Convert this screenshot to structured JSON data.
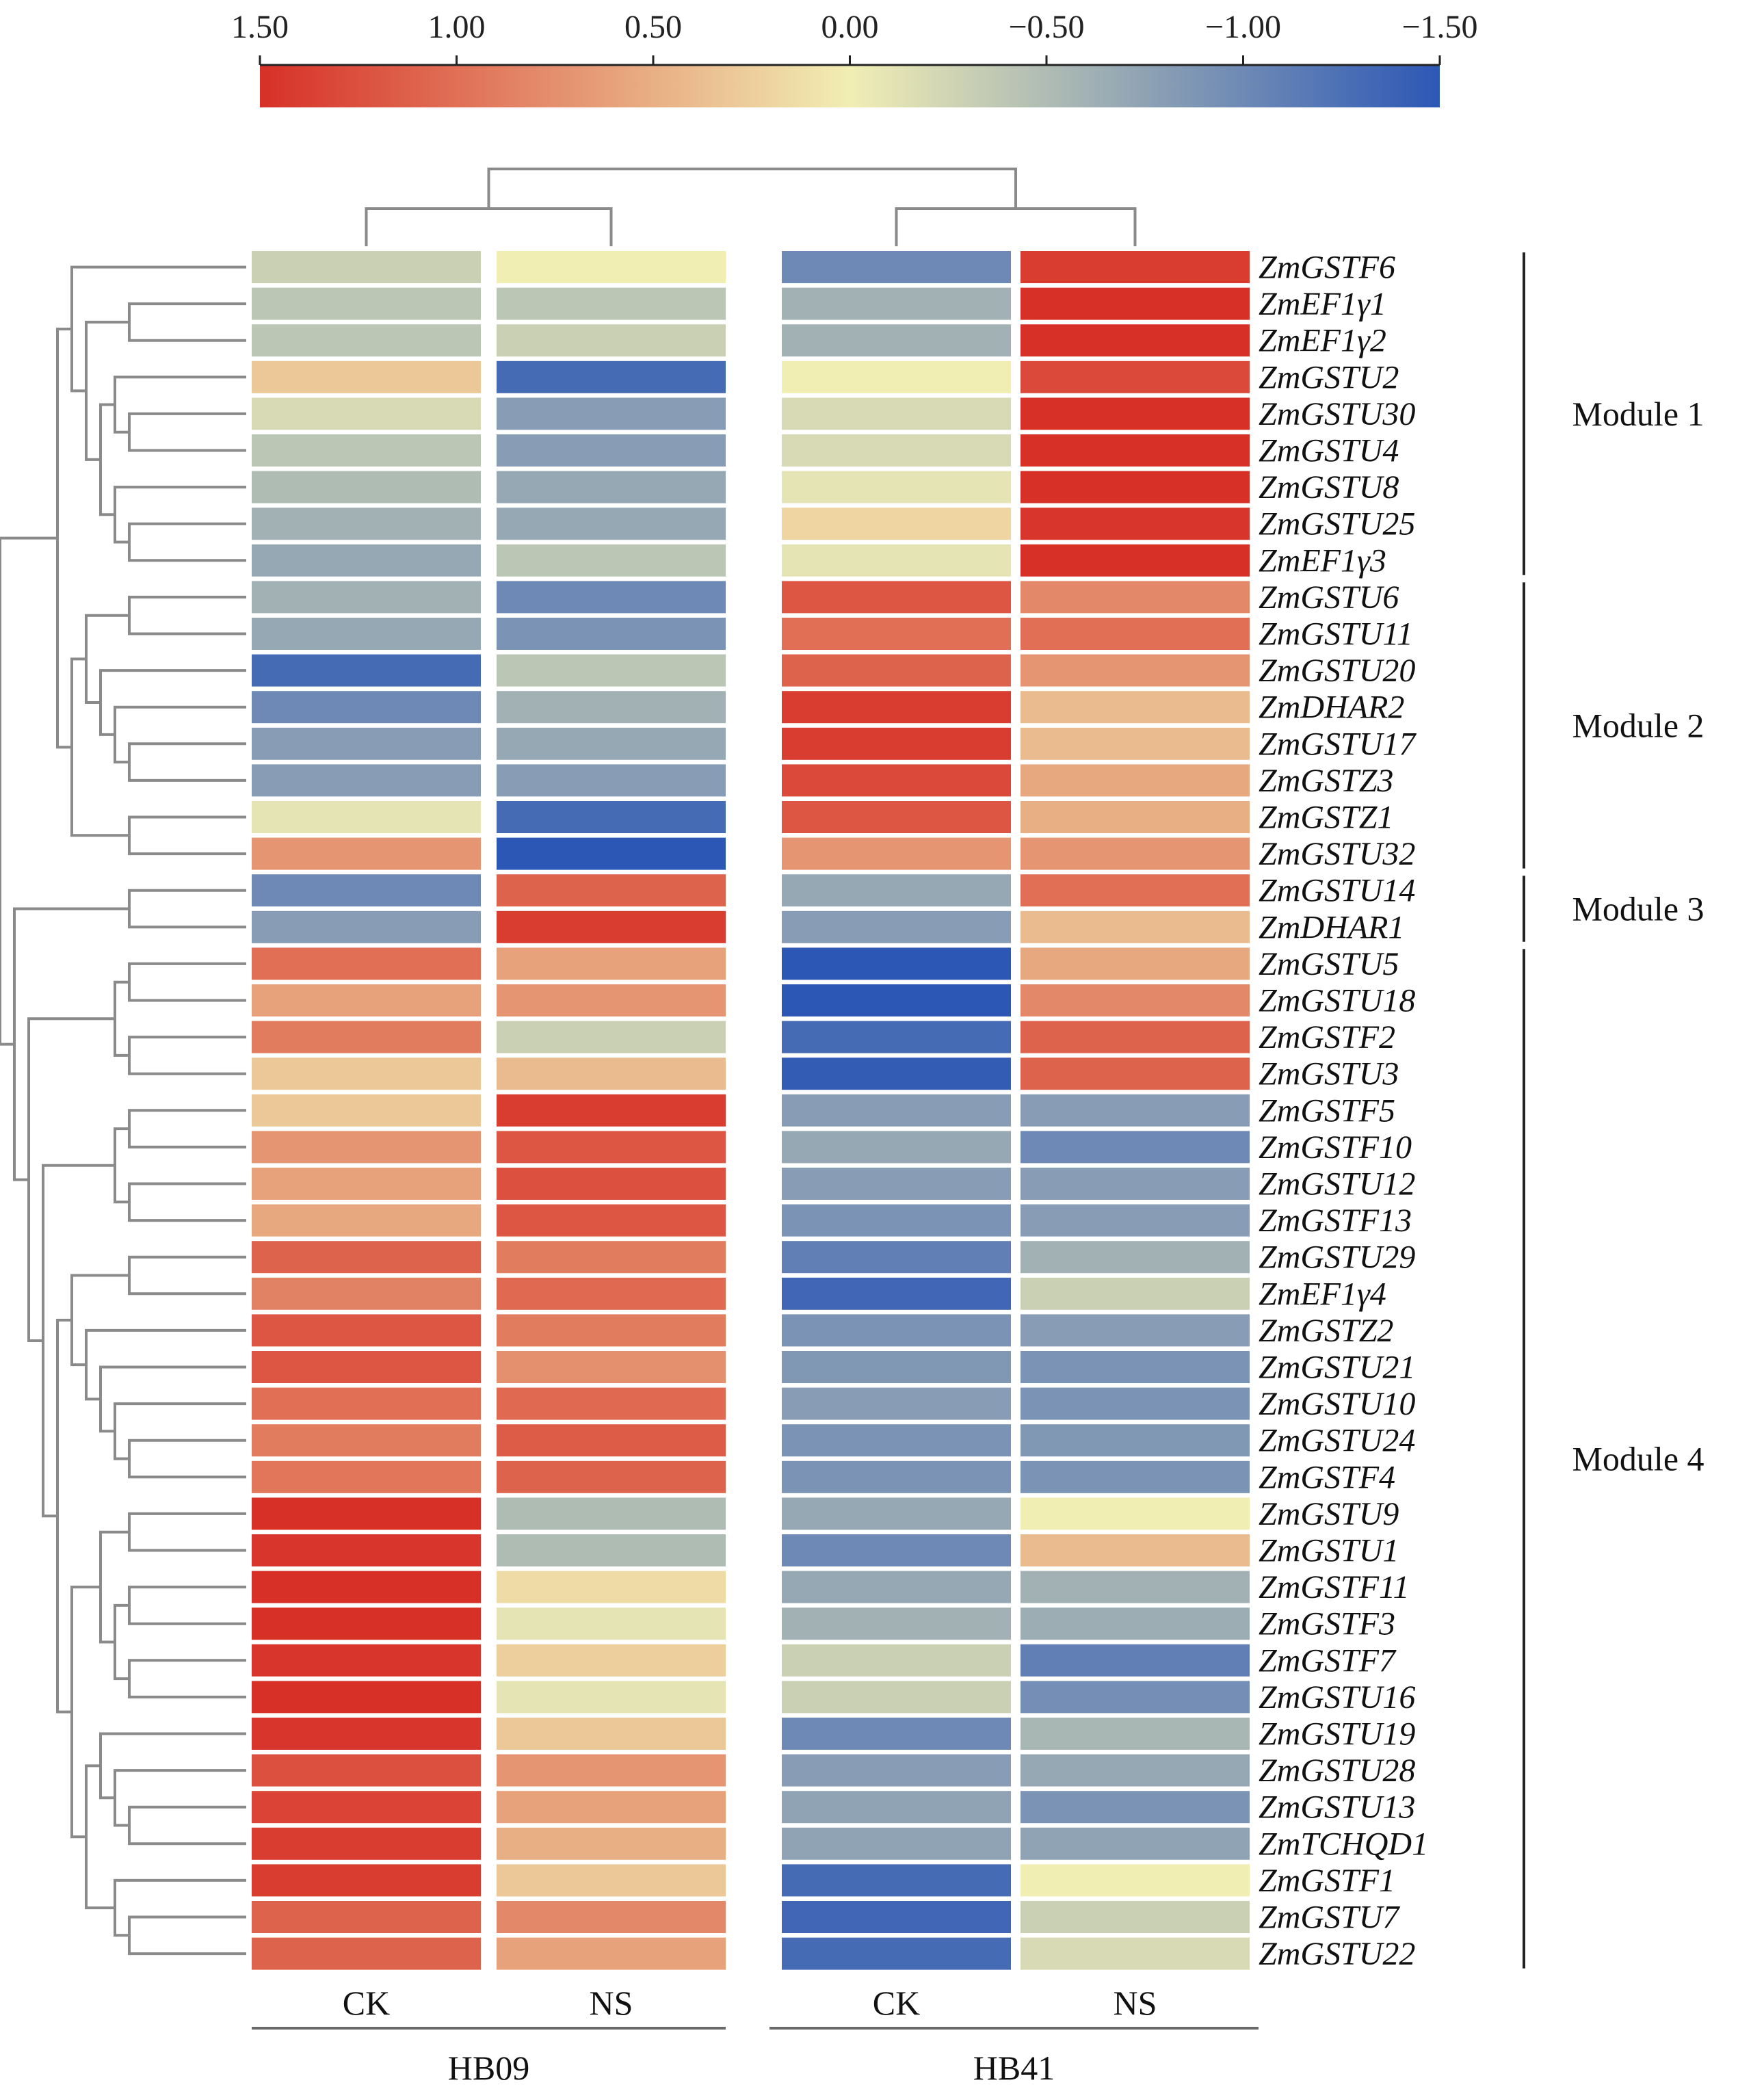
{
  "chart_data": {
    "type": "heatmap",
    "title": "",
    "colorbar": {
      "ticks": [
        "1.50",
        "1.00",
        "0.50",
        "0.00",
        "−0.50",
        "−1.00",
        "−1.50"
      ],
      "range": [
        1.5,
        -1.5
      ],
      "colors": {
        "high": "#d73027",
        "mid": "#f1eeb4",
        "low": "#2c57b5"
      }
    },
    "groups": [
      {
        "name": "HB09",
        "columns": [
          "CK",
          "NS"
        ]
      },
      {
        "name": "HB41",
        "columns": [
          "CK",
          "NS"
        ]
      }
    ],
    "columns": [
      "HB09 CK",
      "HB09 NS",
      "HB41 CK",
      "HB41 NS"
    ],
    "genes": [
      "ZmGSTF6",
      "ZmEF1γ1",
      "ZmEF1γ2",
      "ZmGSTU2",
      "ZmGSTU30",
      "ZmGSTU4",
      "ZmGSTU8",
      "ZmGSTU25",
      "ZmEF1γ3",
      "ZmGSTU6",
      "ZmGSTU11",
      "ZmGSTU20",
      "ZmDHAR2",
      "ZmGSTU17",
      "ZmGSTZ3",
      "ZmGSTZ1",
      "ZmGSTU32",
      "ZmGSTU14",
      "ZmDHAR1",
      "ZmGSTU5",
      "ZmGSTU18",
      "ZmGSTF2",
      "ZmGSTU3",
      "ZmGSTF5",
      "ZmGSTF10",
      "ZmGSTU12",
      "ZmGSTF13",
      "ZmGSTU29",
      "ZmEF1γ4",
      "ZmGSTZ2",
      "ZmGSTU21",
      "ZmGSTU10",
      "ZmGSTU24",
      "ZmGSTF4",
      "ZmGSTU9",
      "ZmGSTU1",
      "ZmGSTF11",
      "ZmGSTF3",
      "ZmGSTF7",
      "ZmGSTU16",
      "ZmGSTU19",
      "ZmGSTU28",
      "ZmGSTU13",
      "ZmTCHQD1",
      "ZmGSTF1",
      "ZmGSTU7",
      "ZmGSTU22"
    ],
    "values": [
      [
        -0.3,
        0.0,
        -1.0,
        1.4
      ],
      [
        -0.4,
        -0.4,
        -0.6,
        1.5
      ],
      [
        -0.4,
        -0.3,
        -0.6,
        1.5
      ],
      [
        0.3,
        -1.3,
        0.0,
        1.3
      ],
      [
        -0.2,
        -0.8,
        -0.2,
        1.5
      ],
      [
        -0.4,
        -0.8,
        -0.2,
        1.5
      ],
      [
        -0.5,
        -0.7,
        -0.1,
        1.5
      ],
      [
        -0.6,
        -0.7,
        0.2,
        1.45
      ],
      [
        -0.7,
        -0.4,
        -0.1,
        1.5
      ],
      [
        -0.6,
        -1.0,
        1.2,
        0.8
      ],
      [
        -0.7,
        -0.9,
        1.0,
        1.0
      ],
      [
        -1.3,
        -0.4,
        1.1,
        0.7
      ],
      [
        -1.0,
        -0.6,
        1.4,
        0.4
      ],
      [
        -0.8,
        -0.7,
        1.4,
        0.4
      ],
      [
        -0.8,
        -0.8,
        1.3,
        0.55
      ],
      [
        -0.1,
        -1.3,
        1.2,
        0.5
      ],
      [
        0.7,
        -1.5,
        0.7,
        0.7
      ],
      [
        -1.0,
        1.1,
        -0.7,
        1.0
      ],
      [
        -0.8,
        1.4,
        -0.8,
        0.4
      ],
      [
        1.0,
        0.6,
        -1.5,
        0.55
      ],
      [
        0.6,
        0.7,
        -1.55,
        0.8
      ],
      [
        0.9,
        -0.3,
        -1.3,
        1.1
      ],
      [
        0.3,
        0.4,
        -1.45,
        1.1
      ],
      [
        0.3,
        1.4,
        -0.8,
        -0.8
      ],
      [
        0.7,
        1.2,
        -0.7,
        -1.0
      ],
      [
        0.6,
        1.25,
        -0.8,
        -0.8
      ],
      [
        0.55,
        1.2,
        -0.9,
        -0.8
      ],
      [
        1.1,
        0.9,
        -1.1,
        -0.6
      ],
      [
        0.85,
        1.05,
        -1.35,
        -0.3
      ],
      [
        1.2,
        0.9,
        -0.9,
        -0.8
      ],
      [
        1.2,
        0.75,
        -0.85,
        -0.9
      ],
      [
        1.0,
        1.05,
        -0.8,
        -0.9
      ],
      [
        0.9,
        1.15,
        -0.9,
        -0.85
      ],
      [
        0.95,
        1.1,
        -0.9,
        -0.9
      ],
      [
        1.5,
        -0.5,
        -0.7,
        0.0
      ],
      [
        1.45,
        -0.5,
        -1.0,
        0.4
      ],
      [
        1.5,
        0.15,
        -0.7,
        -0.6
      ],
      [
        1.5,
        -0.1,
        -0.6,
        -0.65
      ],
      [
        1.45,
        0.25,
        -0.3,
        -1.1
      ],
      [
        1.5,
        -0.1,
        -0.3,
        -0.95
      ],
      [
        1.45,
        0.3,
        -1.0,
        -0.55
      ],
      [
        1.25,
        0.7,
        -0.8,
        -0.7
      ],
      [
        1.35,
        0.6,
        -0.75,
        -0.9
      ],
      [
        1.4,
        0.5,
        -0.75,
        -0.75
      ],
      [
        1.4,
        0.3,
        -1.3,
        0.0
      ],
      [
        1.1,
        0.8,
        -1.35,
        -0.3
      ],
      [
        1.1,
        0.6,
        -1.3,
        -0.2
      ]
    ],
    "modules": [
      {
        "name": "Module 1",
        "rows": [
          0,
          8
        ]
      },
      {
        "name": "Module 2",
        "rows": [
          9,
          16
        ]
      },
      {
        "name": "Module 3",
        "rows": [
          17,
          18
        ]
      },
      {
        "name": "Module 4",
        "rows": [
          19,
          46
        ]
      }
    ]
  }
}
